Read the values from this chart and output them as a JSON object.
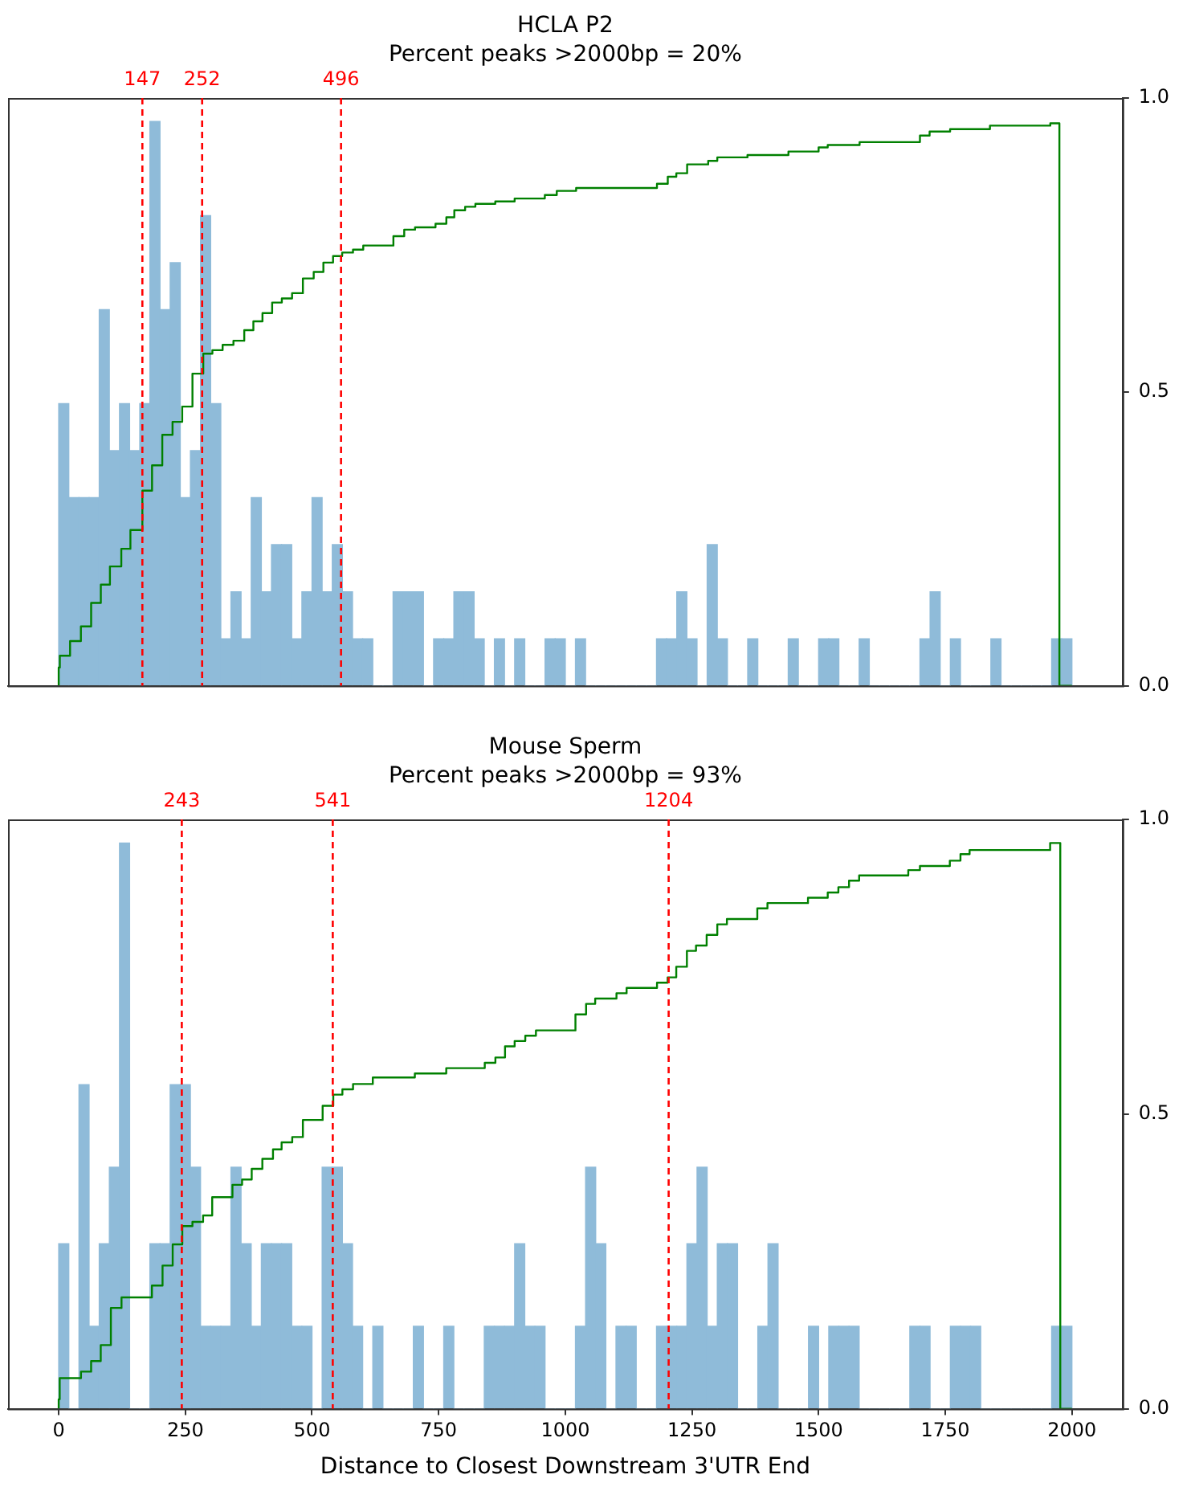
{
  "chart_data": [
    {
      "type": "histogram",
      "title": "HCLA P2",
      "subtitle": "Percent peaks >2000bp = 20%",
      "xlim": [
        -89,
        1869
      ],
      "tick_labels": "y",
      "ylim": [
        0,
        1.0
      ],
      "yticks": [
        {
          "value": 0,
          "label": "0.0"
        },
        {
          "value": 0.5,
          "label": "0.5"
        },
        {
          "value": 1,
          "label": "1.0"
        }
      ],
      "series": [
        {
          "type": "histogram",
          "color": "#8fbbd9",
          "bins": [
            0,
            17.8,
            35.6,
            53.4,
            71.2,
            89,
            106.8,
            124.6,
            142.4,
            160.2,
            178,
            195.8,
            213.6,
            231.4,
            249.2,
            267,
            284.8,
            302.6,
            320.4,
            338.2,
            356,
            373.8,
            391.6,
            409.4,
            427.2,
            445,
            462.8,
            480.6,
            498.4,
            516.2,
            534,
            551.8,
            569.6,
            587.4,
            605.2,
            623,
            640.8,
            658.6,
            676.4,
            694.2,
            712,
            729.8,
            747.6,
            765.4,
            783.2,
            801,
            818.8,
            836.6,
            854.4,
            872.2,
            890,
            907.8,
            925.6,
            943.4,
            961.2,
            979,
            996.8,
            1014.6,
            1032.4,
            1050.2,
            1068,
            1085.8,
            1103.6,
            1121.4,
            1139.2,
            1157,
            1174.8,
            1192.6,
            1210.4,
            1228.2,
            1246,
            1263.8,
            1281.6,
            1299.4,
            1317.2,
            1335,
            1352.8,
            1370.6,
            1388.4,
            1406.2,
            1424,
            1441.8,
            1459.6,
            1477.4,
            1495.2,
            1513,
            1530.8,
            1548.6,
            1566.4,
            1584.2,
            1602,
            1619.8,
            1637.6,
            1655.4,
            1673.2,
            1691,
            1708.8,
            1726.6,
            1744.4,
            1762.2,
            1780
          ],
          "values": [
            0.48,
            0.32,
            0.32,
            0.32,
            0.64,
            0.4,
            0.48,
            0.4,
            0.48,
            0.96,
            0.64,
            0.72,
            0.32,
            0.4,
            0.8,
            0.48,
            0.08,
            0.16,
            0.08,
            0.32,
            0.16,
            0.24,
            0.24,
            0.08,
            0.16,
            0.32,
            0.16,
            0.24,
            0.16,
            0.08,
            0.08,
            0,
            0,
            0.16,
            0.16,
            0.16,
            0,
            0.08,
            0.08,
            0.16,
            0.16,
            0.08,
            0,
            0.08,
            0,
            0.08,
            0,
            0,
            0.08,
            0.08,
            0,
            0.08,
            0,
            0,
            0,
            0,
            0,
            0,
            0,
            0.08,
            0.08,
            0.16,
            0.08,
            0,
            0.24,
            0.08,
            0,
            0,
            0.08,
            0,
            0,
            0,
            0.08,
            0,
            0,
            0.08,
            0.08,
            0,
            0,
            0.08,
            0,
            0,
            0,
            0,
            0,
            0.08,
            0.16,
            0,
            0.08,
            0,
            0,
            0,
            0.08,
            0,
            0,
            0,
            0,
            0,
            0.08,
            0.08
          ]
        },
        {
          "type": "step",
          "color": "#008000",
          "x": [
            0,
            2,
            20,
            39,
            57,
            74,
            90,
            110,
            126,
            147,
            164,
            182,
            200,
            217,
            235,
            254,
            270,
            288,
            307,
            326,
            342,
            358,
            375,
            392,
            410,
            429,
            448,
            465,
            482,
            498,
            517,
            535,
            588,
            607,
            626,
            662,
            681,
            695,
            714,
            732,
            767,
            801,
            854,
            875,
            909,
            1051,
            1070,
            1085,
            1104,
            1141,
            1157,
            1210,
            1282,
            1335,
            1351,
            1407,
            1513,
            1530,
            1566,
            1636,
            1742,
            1758,
            1780
          ],
          "values": [
            0,
            0.031,
            0.051,
            0.076,
            0.101,
            0.141,
            0.172,
            0.203,
            0.233,
            0.265,
            0.332,
            0.375,
            0.427,
            0.449,
            0.475,
            0.531,
            0.565,
            0.571,
            0.58,
            0.587,
            0.605,
            0.62,
            0.634,
            0.652,
            0.659,
            0.668,
            0.693,
            0.704,
            0.72,
            0.731,
            0.737,
            0.742,
            0.749,
            0.765,
            0.776,
            0.78,
            0.786,
            0.797,
            0.809,
            0.815,
            0.82,
            0.824,
            0.829,
            0.835,
            0.842,
            0.847,
            0.854,
            0.866,
            0.872,
            0.887,
            0.893,
            0.899,
            0.903,
            0.909,
            0.916,
            0.92,
            0.925,
            0.936,
            0.943,
            0.947,
            0.953,
            0.957,
            0
          ]
        }
      ],
      "ref_lines": [
        {
          "axis": "x",
          "value": 147,
          "label": "147",
          "color": "#ff0000",
          "line_style": "dashed"
        },
        {
          "axis": "x",
          "value": 252,
          "label": "252",
          "color": "#ff0000",
          "line_style": "dashed"
        },
        {
          "axis": "x",
          "value": 496,
          "label": "496",
          "color": "#ff0000",
          "line_style": "dashed"
        }
      ]
    },
    {
      "type": "histogram",
      "title": "Mouse Sperm",
      "subtitle": "Percent peaks >2000bp = 93%",
      "xlabel": "Distance to Closest Downstream 3'UTR End",
      "xlim": [
        -100,
        2100
      ],
      "xticks": [
        0,
        250,
        500,
        750,
        1000,
        1250,
        1500,
        1750,
        2000
      ],
      "ylim": [
        0,
        1.0
      ],
      "yticks": [
        {
          "value": 0,
          "label": "0.0"
        },
        {
          "value": 0.5,
          "label": "0.5"
        },
        {
          "value": 1,
          "label": "1.0"
        }
      ],
      "series": [
        {
          "type": "histogram",
          "color": "#8fbbd9",
          "bins": [
            0,
            20,
            40,
            60,
            80,
            100,
            120,
            140,
            160,
            180,
            200,
            220,
            240,
            260,
            280,
            300,
            320,
            340,
            360,
            380,
            400,
            420,
            440,
            460,
            480,
            500,
            520,
            540,
            560,
            580,
            600,
            620,
            640,
            660,
            680,
            700,
            720,
            740,
            760,
            780,
            800,
            820,
            840,
            860,
            880,
            900,
            920,
            940,
            960,
            980,
            1000,
            1020,
            1040,
            1060,
            1080,
            1100,
            1120,
            1140,
            1160,
            1180,
            1200,
            1220,
            1240,
            1260,
            1280,
            1300,
            1320,
            1340,
            1360,
            1380,
            1400,
            1420,
            1440,
            1460,
            1480,
            1500,
            1520,
            1540,
            1560,
            1580,
            1600,
            1620,
            1640,
            1660,
            1680,
            1700,
            1720,
            1740,
            1760,
            1780,
            1800,
            1820,
            1840,
            1860,
            1880,
            1900,
            1920,
            1940,
            1960,
            1980,
            2000
          ],
          "values": [
            0.28,
            0,
            0.55,
            0.14,
            0.28,
            0.41,
            0.96,
            0,
            0,
            0.28,
            0.28,
            0.55,
            0.55,
            0.41,
            0.14,
            0.14,
            0.14,
            0.41,
            0.28,
            0.14,
            0.28,
            0.28,
            0.28,
            0.14,
            0.14,
            0,
            0.41,
            0.41,
            0.28,
            0.14,
            0,
            0.14,
            0,
            0,
            0,
            0.14,
            0,
            0,
            0.14,
            0,
            0,
            0,
            0.14,
            0.14,
            0.14,
            0.28,
            0.14,
            0.14,
            0,
            0,
            0,
            0.14,
            0.41,
            0.28,
            0,
            0.14,
            0.14,
            0,
            0,
            0.14,
            0.14,
            0.14,
            0.28,
            0.41,
            0.14,
            0.28,
            0.28,
            0,
            0,
            0.14,
            0.28,
            0,
            0,
            0,
            0.14,
            0,
            0.14,
            0.14,
            0.14,
            0,
            0,
            0,
            0,
            0,
            0.14,
            0.14,
            0,
            0,
            0.14,
            0.14,
            0.14,
            0,
            0,
            0,
            0,
            0,
            0,
            0,
            0.14,
            0.14
          ]
        },
        {
          "type": "step",
          "color": "#008000",
          "x": [
            0,
            2,
            44,
            64,
            83,
            103,
            124,
            184,
            205,
            225,
            244,
            264,
            285,
            303,
            343,
            362,
            381,
            402,
            423,
            440,
            461,
            482,
            521,
            542,
            560,
            581,
            620,
            703,
            765,
            841,
            862,
            881,
            900,
            921,
            942,
            1020,
            1041,
            1059,
            1101,
            1121,
            1181,
            1202,
            1219,
            1240,
            1258,
            1279,
            1300,
            1319,
            1379,
            1399,
            1479,
            1518,
            1539,
            1560,
            1580,
            1677,
            1700,
            1759,
            1780,
            1798,
            1957,
            1977,
            2000
          ],
          "values": [
            0,
            0.016,
            0.052,
            0.063,
            0.081,
            0.108,
            0.171,
            0.189,
            0.209,
            0.243,
            0.279,
            0.31,
            0.317,
            0.328,
            0.359,
            0.38,
            0.389,
            0.407,
            0.424,
            0.44,
            0.452,
            0.461,
            0.49,
            0.514,
            0.533,
            0.542,
            0.551,
            0.562,
            0.569,
            0.578,
            0.587,
            0.596,
            0.615,
            0.624,
            0.633,
            0.642,
            0.669,
            0.687,
            0.696,
            0.705,
            0.714,
            0.723,
            0.732,
            0.75,
            0.777,
            0.786,
            0.804,
            0.822,
            0.831,
            0.849,
            0.858,
            0.867,
            0.876,
            0.885,
            0.896,
            0.905,
            0.914,
            0.921,
            0.93,
            0.941,
            0.948,
            0.96,
            0
          ]
        }
      ],
      "ref_lines": [
        {
          "axis": "x",
          "value": 243,
          "label": "243",
          "color": "#ff0000",
          "line_style": "dashed"
        },
        {
          "axis": "x",
          "value": 541,
          "label": "541",
          "color": "#ff0000",
          "line_style": "dashed"
        },
        {
          "axis": "x",
          "value": 1204,
          "label": "1204",
          "color": "#ff0000",
          "line_style": "dashed"
        }
      ]
    }
  ]
}
